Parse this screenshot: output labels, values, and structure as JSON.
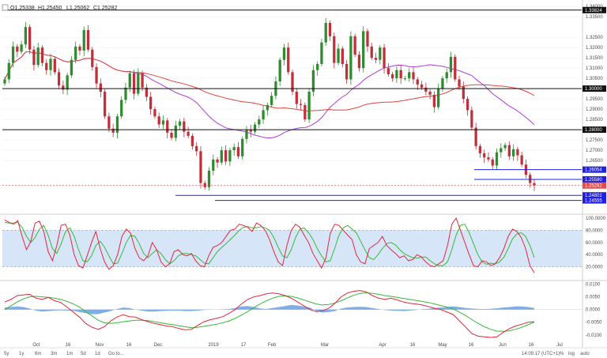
{
  "ohlc_legend": {
    "open": "O1.25338",
    "high": "H1.25450",
    "low": "L1.25062",
    "close": "C1.25282"
  },
  "toolbar": {
    "ranges": [
      "5y",
      "1y",
      "6m",
      "3m",
      "1m",
      "5d",
      "1d",
      "Go to..."
    ],
    "clock": "14:09:17 (UTC+1)",
    "pct": "%",
    "log": "log",
    "auto": "auto"
  },
  "colors": {
    "up": "#2e8b2e",
    "down": "#c0303a",
    "ma_red": "#e0443c",
    "ma_purple": "#b03cd8",
    "blue_line": "#2020e0",
    "stoch_k": "#e0283c",
    "stoch_d": "#3ab83a",
    "stoch_band": "#c8dcf5",
    "hist": "#6a9fe0",
    "price_tag": "#e64a4a"
  },
  "chart_data": [
    {
      "type": "candlestick",
      "title": "",
      "ylim": [
        1.24,
        1.342
      ],
      "yticks": [
        "1.34000",
        "1.33500",
        "1.32500",
        "1.32000",
        "1.31500",
        "1.31000",
        "1.30500",
        "1.29500",
        "1.29000",
        "1.28500",
        "1.27500",
        "1.27000",
        "1.26500"
      ],
      "xticks": [
        "Oct",
        "16",
        "Nov",
        "16",
        "Dec",
        "2019",
        "17",
        "Feb",
        "Mar",
        "Apr",
        "16",
        "May",
        "16",
        "Jun",
        "16",
        "Jul"
      ],
      "horizontal_levels": [
        {
          "label": "1.33824",
          "value": 1.33824,
          "style": "black"
        },
        {
          "label": "1.30000",
          "value": 1.3,
          "style": "black"
        },
        {
          "label": "1.28000",
          "value": 1.28,
          "style": "black"
        },
        {
          "label": "1.26054",
          "value": 1.26054,
          "style": "blue"
        },
        {
          "label": "1.25580",
          "value": 1.2558,
          "style": "blue"
        },
        {
          "label": "1.25282",
          "value": 1.25282,
          "style": "last"
        },
        {
          "label": "1.24801",
          "value": 1.24801,
          "style": "blue"
        },
        {
          "label": "1.24555",
          "value": 1.24555,
          "style": "blue"
        }
      ],
      "closes": [
        1.3045,
        1.3125,
        1.3205,
        1.318,
        1.3215,
        1.33,
        1.319,
        1.3115,
        1.32,
        1.3125,
        1.309,
        1.3145,
        1.308,
        1.3015,
        1.2995,
        1.3065,
        1.314,
        1.3205,
        1.3185,
        1.3285,
        1.319,
        1.3105,
        1.3025,
        1.2985,
        1.2865,
        1.2805,
        1.2785,
        1.2865,
        1.2945,
        1.3005,
        1.3075,
        1.2975,
        1.3075,
        1.3005,
        1.296,
        1.29,
        1.2865,
        1.2825,
        1.2845,
        1.2785,
        1.276,
        1.282,
        1.284,
        1.279,
        1.277,
        1.272,
        1.2695,
        1.254,
        1.252,
        1.26,
        1.2655,
        1.264,
        1.27,
        1.2645,
        1.27,
        1.2715,
        1.267,
        1.2755,
        1.28,
        1.279,
        1.2825,
        1.285,
        1.2895,
        1.292,
        1.2965,
        1.3035,
        1.314,
        1.32,
        1.308,
        1.2985,
        1.2925,
        1.292,
        1.285,
        1.2985,
        1.309,
        1.312,
        1.3225,
        1.332,
        1.3255,
        1.3125,
        1.3195,
        1.312,
        1.3045,
        1.3255,
        1.3165,
        1.31,
        1.328,
        1.3205,
        1.315,
        1.314,
        1.32,
        1.31,
        1.307,
        1.305,
        1.309,
        1.305,
        1.305,
        1.308,
        1.3045,
        1.302,
        1.3005,
        1.2985,
        1.297,
        1.291,
        1.3,
        1.305,
        1.308,
        1.3155,
        1.3045,
        1.301,
        1.295,
        1.2895,
        1.281,
        1.272,
        1.2685,
        1.2665,
        1.2655,
        1.2625,
        1.269,
        1.271,
        1.2725,
        1.267,
        1.2705,
        1.2675,
        1.263,
        1.258,
        1.254,
        1.2528
      ]
    },
    {
      "type": "line",
      "title": "",
      "ylim": [
        0,
        100
      ],
      "yticks": [
        "100.0000",
        "80.0000",
        "60.0000",
        "40.0000",
        "20.0000"
      ],
      "band": [
        20,
        80
      ],
      "series": [
        {
          "values": [
            97,
            93,
            90,
            96,
            70,
            48,
            62,
            92,
            95,
            78,
            45,
            30,
            55,
            88,
            90,
            72,
            40,
            22,
            18,
            38,
            60,
            78,
            50,
            28,
            16,
            22,
            40,
            70,
            82,
            75,
            50,
            35,
            30,
            38,
            60,
            48,
            28,
            20,
            25,
            45,
            48,
            40,
            38,
            42,
            30,
            22,
            20,
            38,
            52,
            55,
            60,
            70,
            80,
            82,
            90,
            88,
            85,
            78,
            92,
            88,
            80,
            65,
            45,
            28,
            22,
            55,
            80,
            90,
            85,
            72,
            60,
            42,
            30,
            18,
            35,
            75,
            90,
            88,
            80,
            72,
            65,
            40,
            28,
            25,
            50,
            55,
            60,
            70,
            55,
            48,
            42,
            35,
            38,
            30,
            32,
            40,
            36,
            28,
            22,
            20,
            25,
            30,
            55,
            90,
            100,
            80,
            60,
            40,
            22,
            20,
            30,
            28,
            22,
            25,
            35,
            50,
            70,
            82,
            78,
            68,
            50,
            22,
            10
          ]
        },
        {
          "values": [
            93,
            92,
            92,
            93,
            85,
            70,
            60,
            68,
            82,
            88,
            72,
            50,
            42,
            58,
            78,
            84,
            70,
            48,
            30,
            28,
            38,
            55,
            62,
            52,
            38,
            25,
            26,
            42,
            60,
            72,
            70,
            58,
            42,
            35,
            42,
            48,
            42,
            32,
            25,
            30,
            38,
            42,
            42,
            40,
            38,
            32,
            26,
            25,
            35,
            45,
            52,
            58,
            65,
            72,
            80,
            85,
            86,
            84,
            84,
            86,
            84,
            80,
            68,
            52,
            38,
            35,
            48,
            68,
            82,
            84,
            76,
            65,
            50,
            38,
            28,
            30,
            50,
            72,
            84,
            88,
            82,
            76,
            62,
            48,
            35,
            32,
            40,
            50,
            58,
            60,
            56,
            48,
            42,
            38,
            35,
            34,
            36,
            36,
            30,
            25,
            22,
            22,
            28,
            48,
            72,
            88,
            90,
            76,
            58,
            40,
            28,
            24,
            26,
            25,
            28,
            36,
            50,
            66,
            74,
            76,
            70,
            55,
            35
          ]
        }
      ]
    },
    {
      "type": "line",
      "title": "",
      "ylim": [
        -0.0135,
        0.0105
      ],
      "yticks": [
        "0.0100",
        "0.0050",
        "0.0000",
        "-0.0050",
        "-0.0100"
      ],
      "series": [
        {
          "values": [
            0.003,
            0.004,
            0.0055,
            0.0058,
            0.006,
            0.0045,
            0.004,
            0.0048,
            0.0035,
            0.0028,
            0.001,
            -0.001,
            -0.003,
            -0.0055,
            -0.007,
            -0.0078,
            -0.0068,
            -0.0045,
            -0.003,
            -0.002,
            -0.0028,
            -0.003,
            -0.004,
            -0.0048,
            -0.0055,
            -0.006,
            -0.0065,
            -0.0068,
            -0.0075,
            -0.008,
            -0.0078,
            -0.0062,
            -0.0048,
            -0.004,
            -0.0035,
            -0.0028,
            -0.0015,
            0.0,
            0.0022,
            0.004,
            0.005,
            0.0055,
            0.0062,
            0.0065,
            0.0062,
            0.0055,
            0.0045,
            0.003,
            0.0015,
            0.0,
            -0.0008,
            -0.0005,
            0.0005,
            0.0025,
            0.005,
            0.0065,
            0.0072,
            0.0075,
            0.007,
            0.0055,
            0.0045,
            0.004,
            0.0045,
            0.0038,
            0.003,
            0.0025,
            0.0022,
            0.0018,
            0.0012,
            0.0005,
            0.0,
            -0.001,
            -0.002,
            -0.0045,
            -0.007,
            -0.0095,
            -0.0105,
            -0.0108,
            -0.011,
            -0.0108,
            -0.009,
            -0.0075,
            -0.0065,
            -0.0058,
            -0.005,
            -0.0048
          ]
        },
        {
          "values": [
            0.0,
            0.0015,
            0.003,
            0.0042,
            0.005,
            0.0052,
            0.005,
            0.0048,
            0.0045,
            0.004,
            0.0032,
            0.0022,
            0.001,
            -0.0008,
            -0.0025,
            -0.0042,
            -0.0052,
            -0.0055,
            -0.0052,
            -0.0048,
            -0.0045,
            -0.0042,
            -0.0042,
            -0.0044,
            -0.0048,
            -0.0052,
            -0.0056,
            -0.006,
            -0.0064,
            -0.0068,
            -0.0072,
            -0.007,
            -0.0066,
            -0.0062,
            -0.0058,
            -0.0052,
            -0.0045,
            -0.0035,
            -0.0022,
            -0.0008,
            0.0008,
            0.0022,
            0.0035,
            0.0045,
            0.0052,
            0.0054,
            0.0052,
            0.0046,
            0.0038,
            0.003,
            0.0022,
            0.0018,
            0.002,
            0.0026,
            0.0035,
            0.0046,
            0.0056,
            0.0064,
            0.0066,
            0.0064,
            0.006,
            0.0055,
            0.0052,
            0.0048,
            0.0044,
            0.004,
            0.0036,
            0.0032,
            0.0028,
            0.0022,
            0.0016,
            0.001,
            0.0002,
            -0.001,
            -0.0024,
            -0.004,
            -0.0055,
            -0.0068,
            -0.0078,
            -0.0085,
            -0.0086,
            -0.0084,
            -0.0078,
            -0.007,
            -0.006,
            -0.005
          ]
        },
        {
          "values": [
            0.0008,
            0.001,
            0.0012,
            0.001,
            0.0004,
            -0.0004,
            -0.0008,
            -0.0006,
            -0.0004,
            -0.0003,
            -0.0004,
            -0.0005,
            -0.001,
            -0.0014,
            -0.0018,
            -0.0018,
            -0.0012,
            -0.0006,
            0.0002,
            0.0008,
            0.0006,
            0.0,
            -0.0004,
            -0.0008,
            -0.0008,
            -0.0006,
            -0.0005,
            -0.0004,
            -0.0004,
            -0.0006,
            -0.0006,
            -0.0004,
            -0.0002,
            -0.0001,
            0.0,
            0.0001,
            0.0002,
            0.0006,
            0.0012,
            0.0014,
            0.001,
            0.0004,
            0.0002,
            0.0006,
            0.001,
            0.0014,
            0.0018,
            0.0016,
            0.0012,
            0.0008,
            -0.0006,
            -0.0012,
            -0.001,
            -0.0006,
            0.0004,
            0.0008,
            0.001,
            0.0011,
            0.001,
            0.0006,
            0.0002,
            -0.0002,
            -0.0004,
            -0.0005,
            -0.0006,
            -0.0004,
            -0.0002,
            0.0001,
            0.0003,
            0.0006,
            0.0008,
            0.001,
            0.0012,
            0.001,
            0.0006,
            0.0004,
            0.0002,
            0.0002,
            0.0003,
            0.0005,
            0.0008,
            0.001,
            0.0012,
            0.0012,
            0.001,
            0.0006
          ]
        }
      ]
    }
  ]
}
